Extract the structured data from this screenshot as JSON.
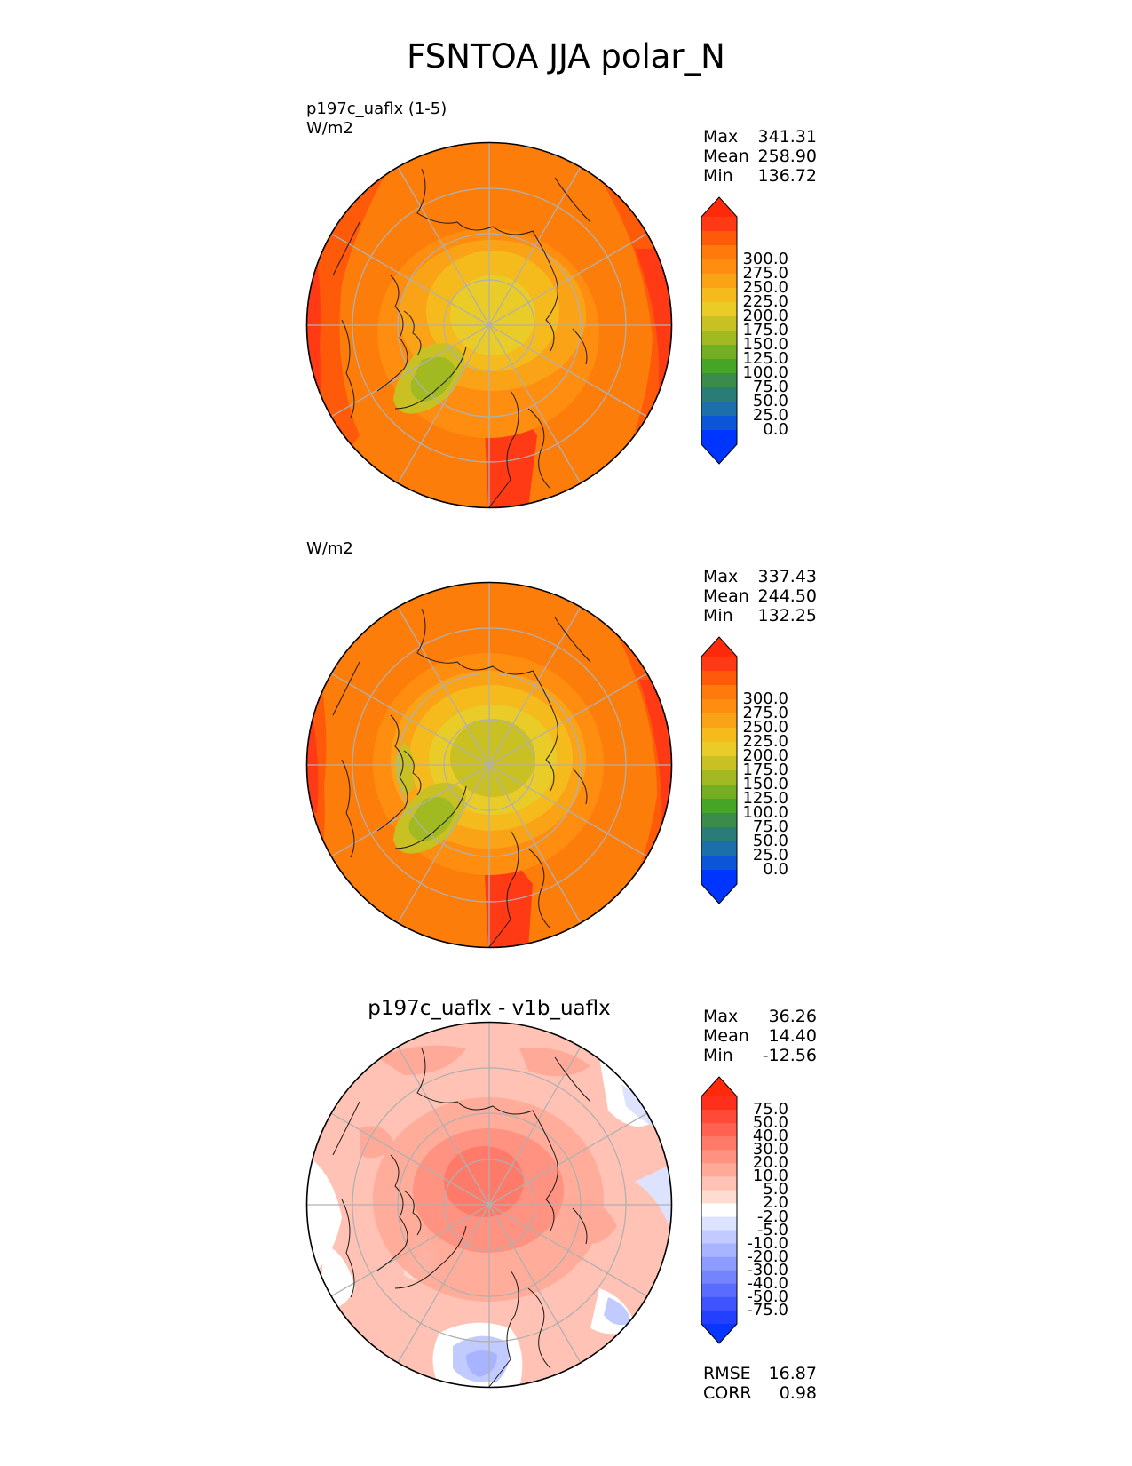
{
  "title": "FSNTOA JJA polar_N",
  "panels": [
    {
      "title_lines": [
        "p197c_uaflx (1-5)",
        "W/m2"
      ],
      "stats": {
        "max_label": "Max",
        "max": "341.31",
        "mean_label": "Mean",
        "mean": "258.90",
        "min_label": "Min",
        "min": "136.72"
      },
      "colorbar": {
        "ticks": [
          "300.0",
          "275.0",
          "250.0",
          "225.0",
          "200.0",
          "175.0",
          "150.0",
          "125.0",
          "100.0",
          "75.0",
          "50.0",
          "25.0",
          "0.0"
        ],
        "colors": [
          "#ff3a14",
          "#ff5a0a",
          "#ff7a0a",
          "#ff8d10",
          "#fba317",
          "#f5bb1c",
          "#e9cc27",
          "#c9c023",
          "#a2ba22",
          "#73ae23",
          "#46a427",
          "#3a8b4c",
          "#2a7d77",
          "#1c6fa8",
          "#0b55d6",
          "#0035ff"
        ],
        "top_color": "#ff2a0a",
        "bottom_color": "#0035ff"
      },
      "map": {
        "type": "polar_N_mean"
      }
    },
    {
      "title_lines": [
        "W/m2"
      ],
      "stats": {
        "max_label": "Max",
        "max": "337.43",
        "mean_label": "Mean",
        "mean": "244.50",
        "min_label": "Min",
        "min": "132.25"
      },
      "colorbar": {
        "ticks": [
          "300.0",
          "275.0",
          "250.0",
          "225.0",
          "200.0",
          "175.0",
          "150.0",
          "125.0",
          "100.0",
          "75.0",
          "50.0",
          "25.0",
          "0.0"
        ],
        "colors": [
          "#ff3a14",
          "#ff5a0a",
          "#ff7a0a",
          "#ff8d10",
          "#fba317",
          "#f5bb1c",
          "#e9cc27",
          "#c9c023",
          "#a2ba22",
          "#73ae23",
          "#46a427",
          "#3a8b4c",
          "#2a7d77",
          "#1c6fa8",
          "#0b55d6",
          "#0035ff"
        ],
        "top_color": "#ff2a0a",
        "bottom_color": "#0035ff"
      },
      "map": {
        "type": "polar_N_mean"
      }
    },
    {
      "center_title": "p197c_uaflx - v1b_uaflx",
      "stats": {
        "max_label": "Max",
        "max": "36.26",
        "mean_label": "Mean",
        "mean": "14.40",
        "min_label": "Min",
        "min": "-12.56"
      },
      "colorbar": {
        "ticks": [
          "75.0",
          "50.0",
          "40.0",
          "30.0",
          "20.0",
          "10.0",
          "5.0",
          "2.0",
          "-2.0",
          "-5.0",
          "-10.0",
          "-20.0",
          "-30.0",
          "-40.0",
          "-50.0",
          "-75.0"
        ],
        "colors": [
          "#ff2f1e",
          "#ff4a38",
          "#ff6250",
          "#ff7a68",
          "#ff9280",
          "#ffaa98",
          "#ffc2b4",
          "#ffdcd2",
          "#ffffff",
          "#dde3ff",
          "#c2cbff",
          "#a8b4ff",
          "#8e9cff",
          "#7484ff",
          "#5a6cff",
          "#3f54ff",
          "#2440ff"
        ],
        "top_color": "#ff2a0a",
        "bottom_color": "#0a35ff"
      },
      "map": {
        "type": "polar_N_diff"
      },
      "footer": {
        "rmse_label": "RMSE",
        "rmse": "16.87",
        "corr_label": "CORR",
        "corr": "0.98"
      }
    }
  ]
}
